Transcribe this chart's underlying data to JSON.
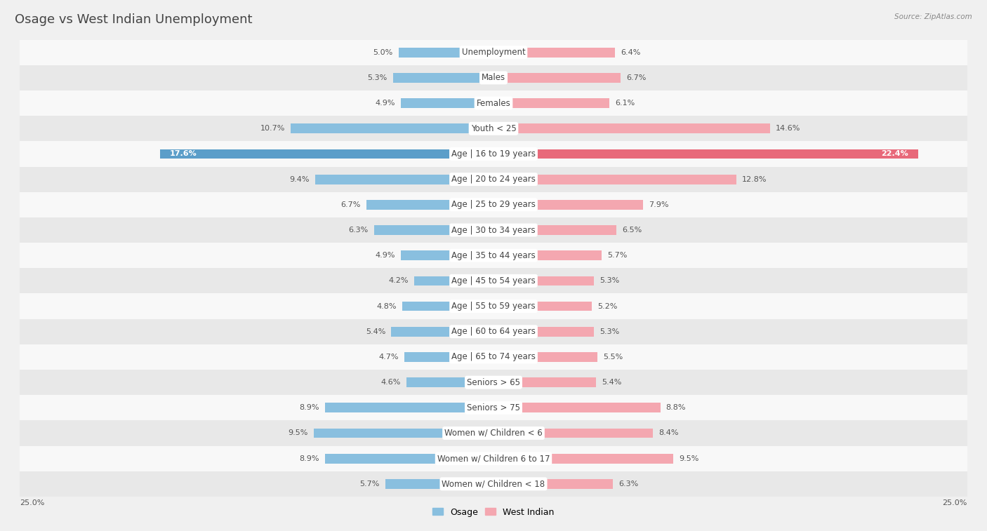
{
  "title": "Osage vs West Indian Unemployment",
  "source": "Source: ZipAtlas.com",
  "categories": [
    "Unemployment",
    "Males",
    "Females",
    "Youth < 25",
    "Age | 16 to 19 years",
    "Age | 20 to 24 years",
    "Age | 25 to 29 years",
    "Age | 30 to 34 years",
    "Age | 35 to 44 years",
    "Age | 45 to 54 years",
    "Age | 55 to 59 years",
    "Age | 60 to 64 years",
    "Age | 65 to 74 years",
    "Seniors > 65",
    "Seniors > 75",
    "Women w/ Children < 6",
    "Women w/ Children 6 to 17",
    "Women w/ Children < 18"
  ],
  "osage_values": [
    5.0,
    5.3,
    4.9,
    10.7,
    17.6,
    9.4,
    6.7,
    6.3,
    4.9,
    4.2,
    4.8,
    5.4,
    4.7,
    4.6,
    8.9,
    9.5,
    8.9,
    5.7
  ],
  "west_indian_values": [
    6.4,
    6.7,
    6.1,
    14.6,
    22.4,
    12.8,
    7.9,
    6.5,
    5.7,
    5.3,
    5.2,
    5.3,
    5.5,
    5.4,
    8.8,
    8.4,
    9.5,
    6.3
  ],
  "osage_color": "#89bfdf",
  "west_indian_color": "#f4a7b0",
  "highlight_osage_color": "#5b9ec9",
  "highlight_west_indian_color": "#e8697a",
  "highlight_row": 4,
  "xlim": 25.0,
  "background_color": "#f0f0f0",
  "row_bg_light": "#f8f8f8",
  "row_bg_dark": "#e8e8e8",
  "bar_row_bg": "#ffffff",
  "legend_osage": "Osage",
  "legend_west_indian": "West Indian",
  "title_fontsize": 13,
  "label_fontsize": 8.5,
  "value_fontsize": 8.0
}
